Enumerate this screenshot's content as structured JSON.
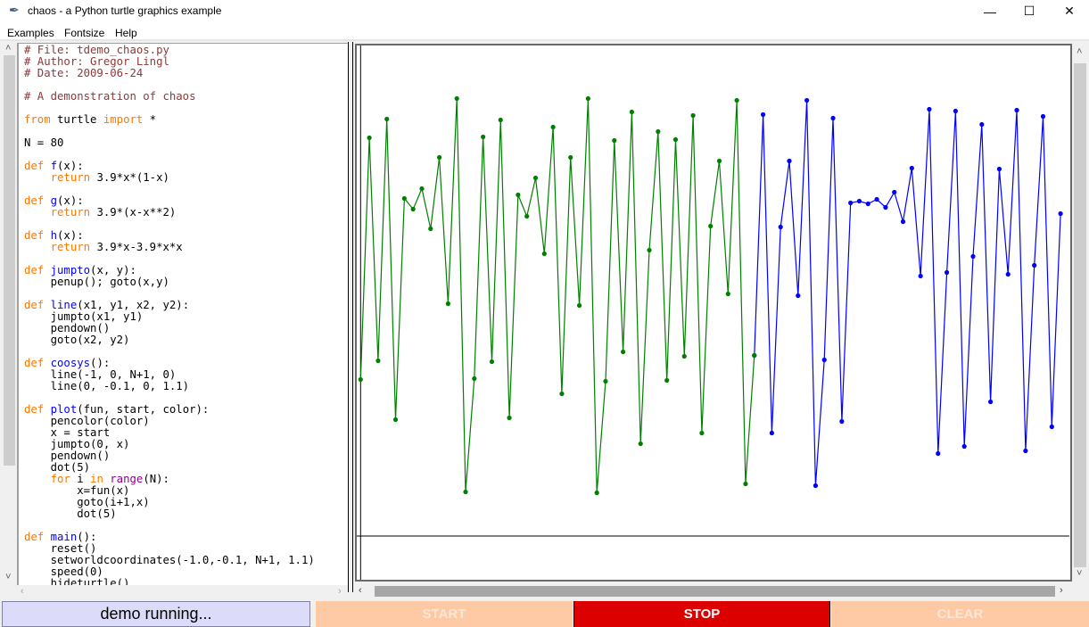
{
  "window": {
    "title": "chaos - a Python turtle graphics example",
    "icon": "feather-icon",
    "controls": {
      "minimize": "—",
      "maximize": "☐",
      "close": "✕"
    }
  },
  "menu": {
    "items": [
      "Examples",
      "Fontsize",
      "Help"
    ]
  },
  "code": {
    "lines": [
      [
        [
          "# File: tdemo_chaos.py",
          "comment"
        ]
      ],
      [
        [
          "# Author: Gregor Lingl",
          "comment"
        ]
      ],
      [
        [
          "# Date: 2009-06-24",
          "comment"
        ]
      ],
      [],
      [
        [
          "# A demonstration of chaos",
          "comment"
        ]
      ],
      [],
      [
        [
          "from",
          "keyword"
        ],
        [
          " turtle ",
          "plain"
        ],
        [
          "import",
          "keyword"
        ],
        [
          " *",
          "plain"
        ]
      ],
      [],
      [
        [
          "N = 80",
          "plain"
        ]
      ],
      [],
      [
        [
          "def",
          "keyword"
        ],
        [
          " ",
          "plain"
        ],
        [
          "f",
          "defname"
        ],
        [
          "(x):",
          "plain"
        ]
      ],
      [
        [
          "    ",
          "plain"
        ],
        [
          "return",
          "keyword"
        ],
        [
          " 3.9*x*(1-x)",
          "plain"
        ]
      ],
      [],
      [
        [
          "def",
          "keyword"
        ],
        [
          " ",
          "plain"
        ],
        [
          "g",
          "defname"
        ],
        [
          "(x):",
          "plain"
        ]
      ],
      [
        [
          "    ",
          "plain"
        ],
        [
          "return",
          "keyword"
        ],
        [
          " 3.9*(x-x**2)",
          "plain"
        ]
      ],
      [],
      [
        [
          "def",
          "keyword"
        ],
        [
          " ",
          "plain"
        ],
        [
          "h",
          "defname"
        ],
        [
          "(x):",
          "plain"
        ]
      ],
      [
        [
          "    ",
          "plain"
        ],
        [
          "return",
          "keyword"
        ],
        [
          " 3.9*x-3.9*x*x",
          "plain"
        ]
      ],
      [],
      [
        [
          "def",
          "keyword"
        ],
        [
          " ",
          "plain"
        ],
        [
          "jumpto",
          "defname"
        ],
        [
          "(x, y):",
          "plain"
        ]
      ],
      [
        [
          "    penup(); goto(x,y)",
          "plain"
        ]
      ],
      [],
      [
        [
          "def",
          "keyword"
        ],
        [
          " ",
          "plain"
        ],
        [
          "line",
          "defname"
        ],
        [
          "(x1, y1, x2, y2):",
          "plain"
        ]
      ],
      [
        [
          "    jumpto(x1, y1)",
          "plain"
        ]
      ],
      [
        [
          "    pendown()",
          "plain"
        ]
      ],
      [
        [
          "    goto(x2, y2)",
          "plain"
        ]
      ],
      [],
      [
        [
          "def",
          "keyword"
        ],
        [
          " ",
          "plain"
        ],
        [
          "coosys",
          "defname"
        ],
        [
          "():",
          "plain"
        ]
      ],
      [
        [
          "    line(-1, 0, N+1, 0)",
          "plain"
        ]
      ],
      [
        [
          "    line(0, -0.1, 0, 1.1)",
          "plain"
        ]
      ],
      [],
      [
        [
          "def",
          "keyword"
        ],
        [
          " ",
          "plain"
        ],
        [
          "plot",
          "defname"
        ],
        [
          "(fun, start, color):",
          "plain"
        ]
      ],
      [
        [
          "    pencolor(color)",
          "plain"
        ]
      ],
      [
        [
          "    x = start",
          "plain"
        ]
      ],
      [
        [
          "    jumpto(0, x)",
          "plain"
        ]
      ],
      [
        [
          "    pendown()",
          "plain"
        ]
      ],
      [
        [
          "    dot(5)",
          "plain"
        ]
      ],
      [
        [
          "    ",
          "plain"
        ],
        [
          "for",
          "keyword"
        ],
        [
          " i ",
          "plain"
        ],
        [
          "in",
          "keyword"
        ],
        [
          " ",
          "plain"
        ],
        [
          "range",
          "builtin"
        ],
        [
          "(N):",
          "plain"
        ]
      ],
      [
        [
          "        x=fun(x)",
          "plain"
        ]
      ],
      [
        [
          "        goto(i+1,x)",
          "plain"
        ]
      ],
      [
        [
          "        dot(5)",
          "plain"
        ]
      ],
      [],
      [
        [
          "def",
          "keyword"
        ],
        [
          " ",
          "plain"
        ],
        [
          "main",
          "defname"
        ],
        [
          "():",
          "plain"
        ]
      ],
      [
        [
          "    reset()",
          "plain"
        ]
      ],
      [
        [
          "    setworldcoordinates(-1.0,-0.1, N+1, 1.1)",
          "plain"
        ]
      ],
      [
        [
          "    speed(0)",
          "plain"
        ]
      ],
      [
        [
          "    hideturtle()",
          "plain"
        ]
      ]
    ]
  },
  "chart_data": {
    "type": "line",
    "xlim": [
      -1,
      81
    ],
    "ylim": [
      -0.1,
      1.1
    ],
    "axes_lines": true,
    "series": [
      {
        "color": "#008000",
        "x_start": 0,
        "values": [
          0.351,
          0.893,
          0.393,
          0.935,
          0.261,
          0.757,
          0.733,
          0.779,
          0.689,
          0.849,
          0.521,
          0.981,
          0.099,
          0.353,
          0.895,
          0.391,
          0.933,
          0.265,
          0.765,
          0.717,
          0.803,
          0.633,
          0.917,
          0.319,
          0.849,
          0.517,
          0.981,
          0.097,
          0.347,
          0.887,
          0.413,
          0.951,
          0.207,
          0.641,
          0.907,
          0.349,
          0.889,
          0.403,
          0.943,
          0.231,
          0.695,
          0.841,
          0.543,
          0.977,
          0.117,
          0.405
        ]
      },
      {
        "color": "#0000ff",
        "x_start": 45,
        "values": [
          0.405,
          0.945,
          0.231,
          0.693,
          0.841,
          0.539,
          0.977,
          0.113,
          0.395,
          0.937,
          0.257,
          0.747,
          0.751,
          0.745,
          0.755,
          0.737,
          0.771,
          0.705,
          0.825,
          0.583,
          0.957,
          0.185,
          0.591,
          0.953,
          0.201,
          0.627,
          0.923,
          0.301,
          0.823,
          0.587,
          0.955,
          0.191,
          0.607,
          0.941,
          0.245,
          0.723
        ]
      }
    ]
  },
  "buttons": {
    "status": "demo running...",
    "start": "START",
    "stop": "STOP",
    "clear": "CLEAR"
  },
  "colors": {
    "status_bg": "#dcdcfa",
    "disabled_bg": "#fdcaa5",
    "stop_bg": "#dd0000"
  }
}
